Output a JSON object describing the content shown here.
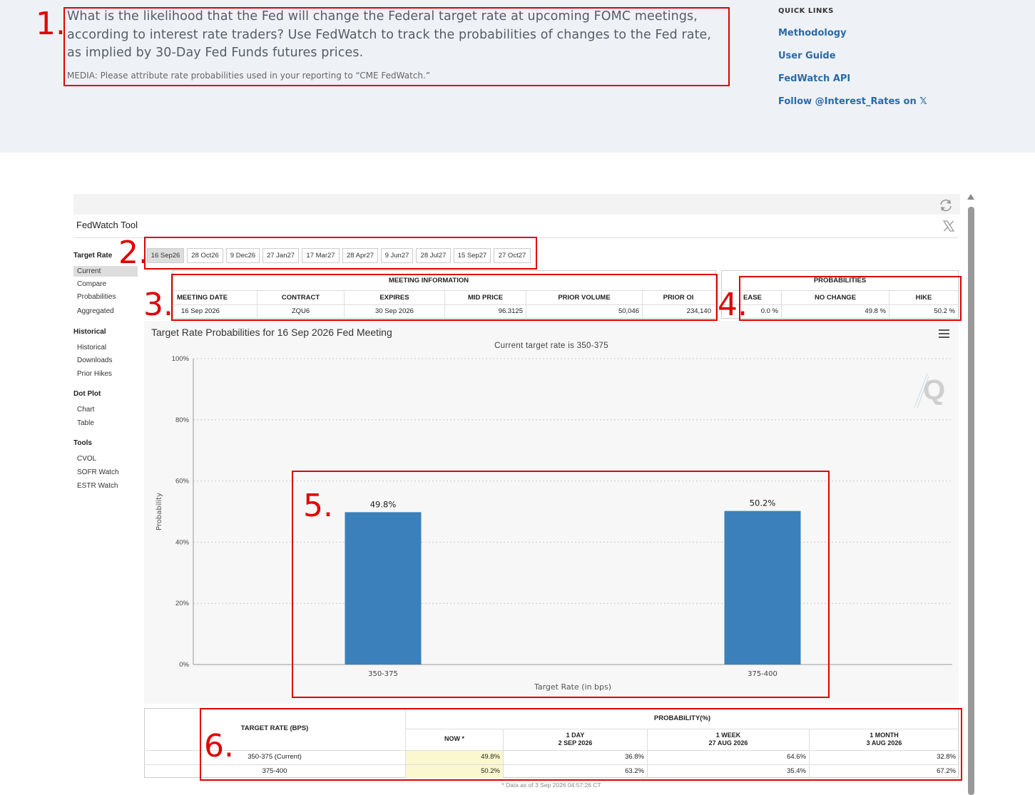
{
  "header": {
    "intro": "What is the likelihood that the Fed will change the Federal target rate at upcoming FOMC meetings, according to interest rate traders? Use FedWatch to track the probabilities of changes to the Fed rate, as implied by 30-Day Fed Funds futures prices.",
    "media": "MEDIA: Please attribute rate probabilities used in your reporting to “CME FedWatch.”",
    "quick_links_title": "QUICK LINKS",
    "quick_links": [
      "Methodology",
      "User Guide",
      "FedWatch API",
      "Follow @Interest_Rates on 𝕏"
    ]
  },
  "annotations": [
    "1.",
    "2.",
    "3.",
    "4.",
    "5.",
    "6."
  ],
  "tool": {
    "title": "FedWatch Tool"
  },
  "nav": {
    "target_rate": "Target Rate",
    "target_items": [
      "Current",
      "Compare",
      "Probabilities",
      "Aggregated"
    ],
    "historical": "Historical",
    "historical_items": [
      "Historical",
      "Downloads",
      "Prior Hikes"
    ],
    "dot_plot": "Dot Plot",
    "dot_items": [
      "Chart",
      "Table"
    ],
    "tools": "Tools",
    "tools_items": [
      "CVOL",
      "SOFR Watch",
      "ESTR Watch"
    ]
  },
  "tabs": [
    "16 Sep26",
    "28 Oct26",
    "9 Dec26",
    "27 Jan27",
    "17 Mar27",
    "28 Apr27",
    "9 Jun27",
    "28 Jul27",
    "15 Sep27",
    "27 Oct27"
  ],
  "meeting_info": {
    "title": "MEETING INFORMATION",
    "headers": [
      "MEETING DATE",
      "CONTRACT",
      "EXPIRES",
      "MID PRICE",
      "PRIOR VOLUME",
      "PRIOR OI"
    ],
    "values": [
      "16 Sep 2026",
      "ZQU6",
      "30 Sep 2026",
      "96.3125",
      "50,046",
      "234,140"
    ]
  },
  "probabilities": {
    "title": "PROBABILITIES",
    "headers": [
      "EASE",
      "NO CHANGE",
      "HIKE"
    ],
    "values": [
      "0.0 %",
      "49.8 %",
      "50.2 %"
    ]
  },
  "chart_data": {
    "type": "bar",
    "title": "Target Rate Probabilities for 16 Sep 2026 Fed Meeting",
    "subtitle": "Current target rate is 350-375",
    "categories": [
      "350-375",
      "375-400"
    ],
    "values": [
      49.8,
      50.2
    ],
    "data_labels": [
      "49.8%",
      "50.2%"
    ],
    "xlabel": "Target Rate (in bps)",
    "ylabel": "Probability",
    "ylim": [
      0,
      100
    ],
    "yticks": [
      "0%",
      "20%",
      "40%",
      "60%",
      "80%",
      "100%"
    ],
    "bar_color": "#3b80bb",
    "grid": true
  },
  "bottom_table": {
    "col_target": "TARGET RATE (BPS)",
    "col_prob": "PROBABILITY(%)",
    "sub_headers": [
      {
        "l1": "NOW *",
        "l2": ""
      },
      {
        "l1": "1 DAY",
        "l2": "2 SEP 2026"
      },
      {
        "l1": "1 WEEK",
        "l2": "27 AUG 2026"
      },
      {
        "l1": "1 MONTH",
        "l2": "3 AUG 2026"
      }
    ],
    "rows": [
      {
        "rate": "350-375 (Current)",
        "vals": [
          "49.8%",
          "36.8%",
          "64.6%",
          "32.8%"
        ]
      },
      {
        "rate": "375-400",
        "vals": [
          "50.2%",
          "63.2%",
          "35.4%",
          "67.2%"
        ]
      }
    ],
    "footnote": "* Data as of 3 Sep 2026 04:57:26 CT"
  }
}
